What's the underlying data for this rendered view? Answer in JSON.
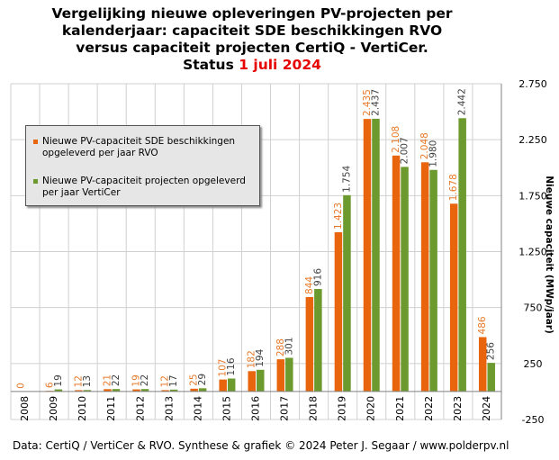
{
  "title": {
    "line1": "Vergelijking  nieuwe opleveringen  PV-projecten per",
    "line2": "kalenderjaar: capaciteit  SDE beschikkingen  RVO",
    "line3": "versus capaciteit  projecten CertiQ - VertiCer.",
    "line4_prefix": "Status ",
    "line4_highlight": "1 juli  2024"
  },
  "footer": "Data: CertiQ / VertiCer & RVO. Synthese & grafiek © 2024 Peter J. Segaar / www.polderpv.nl",
  "colors": {
    "rvo": "#e8650d",
    "verticer": "#6c9a2f",
    "rvo_label": "#e87a2a",
    "verticer_label": "#404040",
    "grid": "#d0d0d0",
    "title_highlight": "#e60000"
  },
  "chart_data": {
    "type": "bar",
    "categories": [
      "2008",
      "2009",
      "2010",
      "2011",
      "2012",
      "2013",
      "2014",
      "2015",
      "2016",
      "2017",
      "2018",
      "2019",
      "2020",
      "2021",
      "2022",
      "2023",
      "2024"
    ],
    "series": [
      {
        "name": "Nieuwe PV-capaciteit SDE beschikkingen opgeleverd per jaar RVO",
        "values": [
          0,
          6,
          12,
          21,
          19,
          12,
          25,
          107,
          182,
          288,
          844,
          1423,
          2435,
          2108,
          2048,
          1678,
          486
        ],
        "labels": [
          "0",
          "6",
          "12",
          "21",
          "19",
          "12",
          "25",
          "107",
          "182",
          "288",
          "844",
          "1.423",
          "2.435",
          "2.108",
          "2.048",
          "1.678",
          "486"
        ]
      },
      {
        "name": "Nieuwe PV-capaciteit projecten opgeleverd per jaar VertiCer",
        "values": [
          null,
          19,
          13,
          22,
          22,
          17,
          29,
          116,
          194,
          301,
          916,
          1754,
          2437,
          2007,
          1980,
          2442,
          256
        ],
        "labels": [
          "",
          "19",
          "13",
          "22",
          "22",
          "17",
          "29",
          "116",
          "194",
          "301",
          "916",
          "1.754",
          "2.437",
          "2.007",
          "1.980",
          "2.442",
          "256"
        ]
      }
    ],
    "ylabel": "Nieuwe capaciteit (MWp/jaar)",
    "ylim": [
      -250,
      2750
    ],
    "yticks": [
      -250,
      250,
      750,
      1250,
      1750,
      2250,
      2750
    ],
    "ytick_labels": [
      "-250",
      "250",
      "750",
      "1.250",
      "1.750",
      "2.250",
      "2.750"
    ],
    "y_axis_side": "right",
    "grid": true,
    "legend_position": "top-left"
  }
}
